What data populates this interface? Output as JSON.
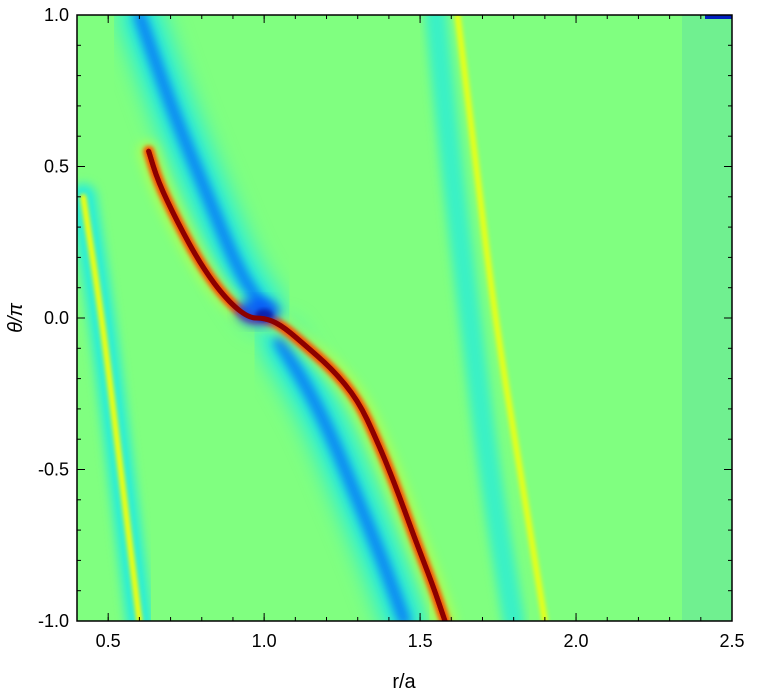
{
  "chart_data": {
    "type": "heatmap",
    "title": "",
    "xlabel": "r/a",
    "ylabel": "θ/π",
    "xlim": [
      0.4,
      2.5
    ],
    "ylim": [
      -1.0,
      1.0
    ],
    "xticks": [
      "0.5",
      "1.0",
      "1.5",
      "2.0",
      "2.5"
    ],
    "xtick_values": [
      0.5,
      1.0,
      1.5,
      2.0,
      2.5
    ],
    "yticks": [
      "-1.0",
      "-0.5",
      "0.0",
      "0.5",
      "1.0"
    ],
    "ytick_values": [
      -1.0,
      -0.5,
      0.0,
      0.5,
      1.0
    ],
    "colormap": [
      "#00008c",
      "#0050ff",
      "#00e6ff",
      "#80ff80",
      "#ffff00",
      "#ff5000",
      "#8c0000"
    ],
    "background_color": "#80ff80",
    "grid": false,
    "legend": "none",
    "features": [
      {
        "kind": "spiral-wake-positive",
        "color_level": "red",
        "points": [
          [
            0.63,
            0.55
          ],
          [
            0.66,
            0.45
          ],
          [
            0.72,
            0.32
          ],
          [
            0.8,
            0.17
          ],
          [
            0.88,
            0.06
          ],
          [
            0.95,
            0.0
          ],
          [
            1.0,
            0.0
          ],
          [
            1.05,
            -0.02
          ],
          [
            1.12,
            -0.08
          ],
          [
            1.22,
            -0.17
          ],
          [
            1.3,
            -0.27
          ],
          [
            1.36,
            -0.4
          ],
          [
            1.42,
            -0.55
          ],
          [
            1.48,
            -0.72
          ],
          [
            1.54,
            -0.88
          ],
          [
            1.58,
            -1.0
          ]
        ]
      },
      {
        "kind": "spiral-wake-negative",
        "color_level": "blue",
        "points": [
          [
            0.6,
            1.0
          ],
          [
            0.65,
            0.85
          ],
          [
            0.72,
            0.65
          ],
          [
            0.82,
            0.4
          ],
          [
            0.92,
            0.15
          ],
          [
            1.0,
            0.03
          ]
        ]
      },
      {
        "kind": "spiral-wake-negative",
        "color_level": "blue",
        "points": [
          [
            1.05,
            -0.08
          ],
          [
            1.15,
            -0.25
          ],
          [
            1.22,
            -0.4
          ],
          [
            1.3,
            -0.6
          ],
          [
            1.38,
            -0.8
          ],
          [
            1.45,
            -1.0
          ]
        ]
      },
      {
        "kind": "inner-band-positive",
        "color_level": "yellow",
        "points": [
          [
            0.42,
            0.4
          ],
          [
            0.48,
            0.0
          ],
          [
            0.54,
            -0.5
          ],
          [
            0.6,
            -1.0
          ]
        ]
      },
      {
        "kind": "outer-band-positive",
        "color_level": "yellow",
        "points": [
          [
            1.62,
            1.0
          ],
          [
            1.68,
            0.5
          ],
          [
            1.74,
            0.0
          ],
          [
            1.82,
            -0.5
          ],
          [
            1.9,
            -1.0
          ]
        ]
      },
      {
        "kind": "outer-band-negative",
        "color_level": "cyan",
        "points": [
          [
            1.55,
            1.0
          ],
          [
            1.6,
            0.5
          ],
          [
            1.66,
            0.0
          ],
          [
            1.72,
            -0.5
          ],
          [
            1.8,
            -1.0
          ]
        ]
      }
    ]
  }
}
